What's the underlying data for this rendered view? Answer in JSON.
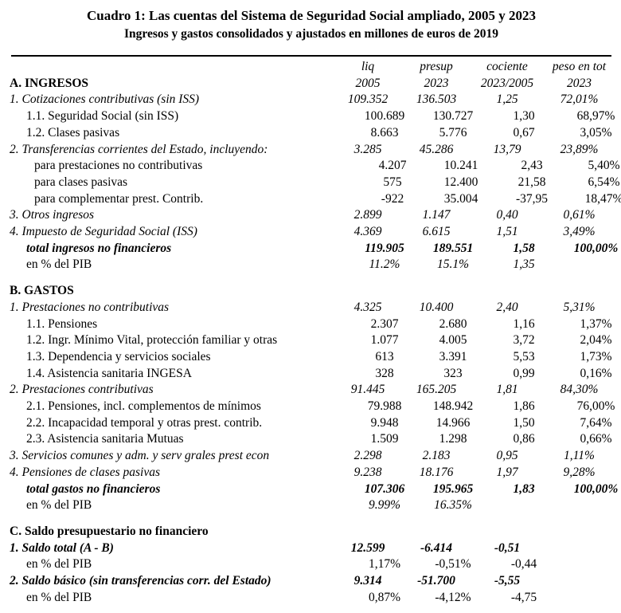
{
  "title": "Cuadro 1: Las cuentas del Sistema de Seguridad Social ampliado, 2005 y 2023",
  "subtitle": "Ingresos y gastos consolidados y ajustados en millones de euros de 2019",
  "columns": {
    "labels_line1": [
      "liq",
      "presup",
      "cociente",
      "peso en tot"
    ],
    "labels_line2": [
      "2005",
      "2023",
      "2023/2005",
      "2023"
    ]
  },
  "section_a_label": "A. INGRESOS",
  "rows": [
    {
      "label": "1. Cotizaciones contributivas (sin ISS)",
      "v": [
        "109.352",
        "136.503",
        "1,25",
        "72,01%"
      ],
      "ls": "i",
      "vs": "i",
      "ind": 0
    },
    {
      "label": "1.1. Seguridad Social (sin ISS)",
      "v": [
        "100.689",
        "130.727",
        "1,30",
        "68,97%"
      ],
      "ls": "r",
      "vs": "r",
      "ind": 1
    },
    {
      "label": "1.2. Clases pasivas",
      "v": [
        "8.663",
        "5.776",
        "0,67",
        "3,05%"
      ],
      "ls": "r",
      "vs": "r",
      "ind": 1
    },
    {
      "label": "2. Transferencias corrientes del Estado, incluyendo:",
      "v": [
        "3.285",
        "45.286",
        "13,79",
        "23,89%"
      ],
      "ls": "i",
      "vs": "i",
      "ind": 0
    },
    {
      "label": "para prestaciones no contributivas",
      "v": [
        "4.207",
        "10.241",
        "2,43",
        "5,40%"
      ],
      "ls": "r",
      "vs": "r",
      "ind": 2
    },
    {
      "label": "para clases pasivas",
      "v": [
        "575",
        "12.400",
        "21,58",
        "6,54%"
      ],
      "ls": "r",
      "vs": "r",
      "ind": 2
    },
    {
      "label": "para complementar prest. Contrib.",
      "v": [
        "-922",
        "35.004",
        "-37,95",
        "18,47%"
      ],
      "ls": "r",
      "vs": "r",
      "ind": 2
    },
    {
      "label": "3. Otros ingresos",
      "v": [
        "2.899",
        "1.147",
        "0,40",
        "0,61%"
      ],
      "ls": "i",
      "vs": "i",
      "ind": 0
    },
    {
      "label": "4. Impuesto de Seguridad Social (ISS)",
      "v": [
        "4.369",
        "6.615",
        "1,51",
        "3,49%"
      ],
      "ls": "i",
      "vs": "i",
      "ind": 0
    },
    {
      "label": "total ingresos no financieros",
      "v": [
        "119.905",
        "189.551",
        "1,58",
        "100,00%"
      ],
      "ls": "bi",
      "vs": "bi",
      "ind": 1
    },
    {
      "label": "en % del PIB",
      "v": [
        "11.2%",
        "15.1%",
        "1,35",
        ""
      ],
      "ls": "r",
      "vs": "i",
      "ind": 1
    },
    {
      "label": "B. GASTOS",
      "v": [
        "",
        "",
        "",
        ""
      ],
      "ls": "b",
      "vs": "r",
      "ind": 0,
      "gap": true
    },
    {
      "label": "1. Prestaciones no contributivas",
      "v": [
        "4.325",
        "10.400",
        "2,40",
        "5,31%"
      ],
      "ls": "i",
      "vs": "i",
      "ind": 0
    },
    {
      "label": "1.1. Pensiones",
      "v": [
        "2.307",
        "2.680",
        "1,16",
        "1,37%"
      ],
      "ls": "r",
      "vs": "r",
      "ind": 1
    },
    {
      "label": "1.2. Ingr. Mínimo Vital, protección familiar y otras",
      "v": [
        "1.077",
        "4.005",
        "3,72",
        "2,04%"
      ],
      "ls": "r",
      "vs": "r",
      "ind": 1
    },
    {
      "label": "1.3. Dependencia y servicios sociales",
      "v": [
        "613",
        "3.391",
        "5,53",
        "1,73%"
      ],
      "ls": "r",
      "vs": "r",
      "ind": 1
    },
    {
      "label": "1.4. Asistencia sanitaria INGESA",
      "v": [
        "328",
        "323",
        "0,99",
        "0,16%"
      ],
      "ls": "r",
      "vs": "r",
      "ind": 1
    },
    {
      "label": "2. Prestaciones contributivas",
      "v": [
        "91.445",
        "165.205",
        "1,81",
        "84,30%"
      ],
      "ls": "i",
      "vs": "i",
      "ind": 0
    },
    {
      "label": "2.1. Pensiones, incl. complementos de mínimos",
      "v": [
        "79.988",
        "148.942",
        "1,86",
        "76,00%"
      ],
      "ls": "r",
      "vs": "r",
      "ind": 1
    },
    {
      "label": "2.2. Incapacidad temporal y otras prest. contrib.",
      "v": [
        "9.948",
        "14.966",
        "1,50",
        "7,64%"
      ],
      "ls": "r",
      "vs": "r",
      "ind": 1
    },
    {
      "label": "2.3. Asistencia sanitaria Mutuas",
      "v": [
        "1.509",
        "1.298",
        "0,86",
        "0,66%"
      ],
      "ls": "r",
      "vs": "r",
      "ind": 1
    },
    {
      "label": "3. Servicios comunes y adm. y serv grales prest econ",
      "v": [
        "2.298",
        "2.183",
        "0,95",
        "1,11%"
      ],
      "ls": "i",
      "vs": "i",
      "ind": 0
    },
    {
      "label": "4. Pensiones de clases pasivas",
      "v": [
        "9.238",
        "18.176",
        "1,97",
        "9,28%"
      ],
      "ls": "i",
      "vs": "i",
      "ind": 0
    },
    {
      "label": "total gastos no financieros",
      "v": [
        "107.306",
        "195.965",
        "1,83",
        "100,00%"
      ],
      "ls": "bi",
      "vs": "bi",
      "ind": 1
    },
    {
      "label": "en % del PIB",
      "v": [
        "9.99%",
        "16.35%",
        "",
        ""
      ],
      "ls": "r",
      "vs": "i",
      "ind": 1
    },
    {
      "label": "C. Saldo presupuestario no financiero",
      "v": [
        "",
        "",
        "",
        ""
      ],
      "ls": "b",
      "vs": "r",
      "ind": 0,
      "gap": true
    },
    {
      "label": "1. Saldo total (A - B)",
      "v": [
        "12.599",
        "-6.414",
        "-0,51",
        ""
      ],
      "ls": "bi",
      "vs": "bi",
      "ind": 0
    },
    {
      "label": "en % del PIB",
      "v": [
        "1,17%",
        "-0,51%",
        "-0,44",
        ""
      ],
      "ls": "r",
      "vs": "r",
      "ind": 1
    },
    {
      "label": "2. Saldo básico (sin transferencias corr. del Estado)",
      "v": [
        "9.314",
        "-51.700",
        "-5,55",
        ""
      ],
      "ls": "bi",
      "vs": "bi",
      "ind": 0
    },
    {
      "label": "en % del PIB",
      "v": [
        "0,87%",
        "-4,12%",
        "-4,75",
        ""
      ],
      "ls": "r",
      "vs": "r",
      "ind": 1
    }
  ]
}
